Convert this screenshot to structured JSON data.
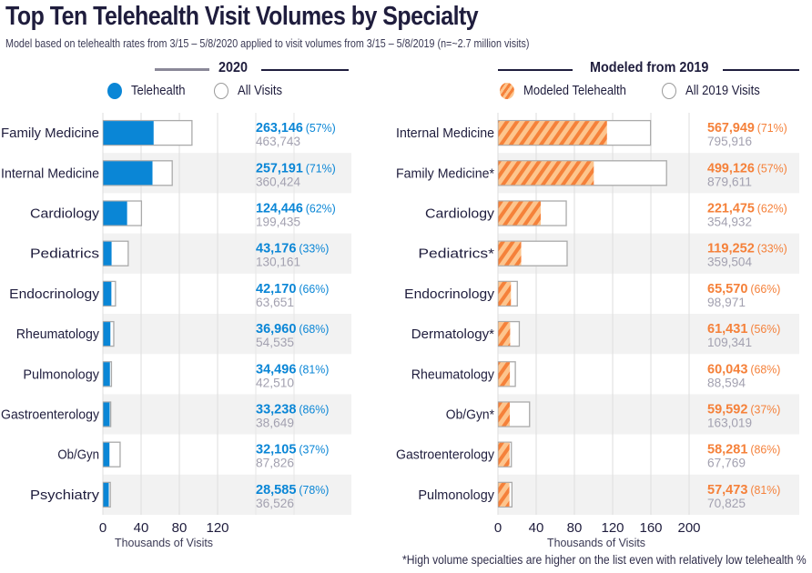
{
  "title": "Top Ten Telehealth Visit Volumes by Specialty",
  "subtitle": "Model based on telehealth rates from 3/15 – 5/8/2020 applied to visit volumes from 3/15 – 5/8/2019 (n=~2.7 million visits)",
  "footnote": "*High volume specialties are higher on the list even with relatively low telehealth %",
  "colors": {
    "telehealth_blue": "#0a86d6",
    "modeled_orange": "#f5813a",
    "modeled_orange_light": "#fdc58e",
    "total_gray_text": "#a3a1b0",
    "label_dark": "#1f1d3d",
    "band_gray": "#f2f2f2"
  },
  "chart_data": [
    {
      "type": "bar",
      "orientation": "horizontal",
      "stacked": "overlay",
      "title": "2020",
      "xlabel": "Thousands of Visits",
      "xticks": [
        "0",
        "40",
        "80",
        "120"
      ],
      "xlim": [
        0,
        140
      ],
      "bar_scale_note": "bar length drawn at value/5 in axis units",
      "grid": true,
      "legend": [
        {
          "label": "Telehealth",
          "style": "solid-blue"
        },
        {
          "label": "All Visits",
          "style": "open"
        }
      ],
      "legend_position": "top",
      "categories": [
        "Family Medicine",
        "Internal Medicine",
        "Cardiology",
        "Pediatrics",
        "Endocrinology",
        "Rheumatology",
        "Pulmonology",
        "Gastroenterology",
        "Ob/Gyn",
        "Psychiatry"
      ],
      "series": [
        {
          "name": "Telehealth",
          "values": [
            263146,
            257191,
            124446,
            43176,
            42170,
            36960,
            34496,
            33238,
            32105,
            28585
          ]
        },
        {
          "name": "All Visits",
          "values": [
            463743,
            360424,
            199435,
            130161,
            63651,
            54535,
            42510,
            38649,
            87826,
            36526
          ]
        }
      ],
      "labels": {
        "telehealth": [
          "263,146",
          "257,191",
          "124,446",
          "43,176",
          "42,170",
          "36,960",
          "34,496",
          "33,238",
          "32,105",
          "28,585"
        ],
        "pct": [
          "(57%)",
          "(71%)",
          "(62%)",
          "(33%)",
          "(66%)",
          "(68%)",
          "(81%)",
          "(86%)",
          "(37%)",
          "(78%)"
        ],
        "total": [
          "463,743",
          "360,424",
          "199,435",
          "130,161",
          "63,651",
          "54,535",
          "42,510",
          "38,649",
          "87,826",
          "36,526"
        ]
      }
    },
    {
      "type": "bar",
      "orientation": "horizontal",
      "stacked": "overlay",
      "title": "Modeled from 2019",
      "xlabel": "Thousands of Visits",
      "xticks": [
        "0",
        "40",
        "80",
        "120",
        "160",
        "200"
      ],
      "xlim": [
        0,
        200
      ],
      "bar_scale_note": "bar length drawn at value/5 in axis units",
      "grid": true,
      "legend": [
        {
          "label": "Modeled Telehealth",
          "style": "hatched-orange"
        },
        {
          "label": "All 2019 Visits",
          "style": "open"
        }
      ],
      "legend_position": "top",
      "categories": [
        "Internal Medicine",
        "Family Medicine*",
        "Cardiology",
        "Pediatrics*",
        "Endocrinology",
        "Dermatology*",
        "Rheumatology",
        "Ob/Gyn*",
        "Gastroenterology",
        "Pulmonology"
      ],
      "series": [
        {
          "name": "Modeled Telehealth",
          "values": [
            567949,
            499126,
            221475,
            119252,
            65570,
            61431,
            60043,
            59592,
            58281,
            57473
          ]
        },
        {
          "name": "All 2019 Visits",
          "values": [
            795916,
            879611,
            354932,
            359504,
            98971,
            109341,
            88594,
            163019,
            67769,
            70825
          ]
        }
      ],
      "labels": {
        "telehealth": [
          "567,949",
          "499,126",
          "221,475",
          "119,252",
          "65,570",
          "61,431",
          "60,043",
          "59,592",
          "58,281",
          "57,473"
        ],
        "pct": [
          "(71%)",
          "(57%)",
          "(62%)",
          "(33%)",
          "(66%)",
          "(56%)",
          "(68%)",
          "(37%)",
          "(86%)",
          "(81%)"
        ],
        "total": [
          "795,916",
          "879,611",
          "354,932",
          "359,504",
          "98,971",
          "109,341",
          "88,594",
          "163,019",
          "67,769",
          "70,825"
        ]
      }
    }
  ]
}
